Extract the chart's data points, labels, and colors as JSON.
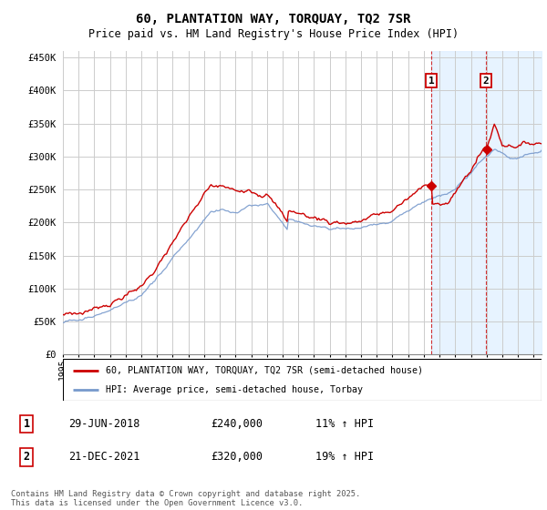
{
  "title": "60, PLANTATION WAY, TORQUAY, TQ2 7SR",
  "subtitle": "Price paid vs. HM Land Registry's House Price Index (HPI)",
  "ylabel_ticks": [
    "£0",
    "£50K",
    "£100K",
    "£150K",
    "£200K",
    "£250K",
    "£300K",
    "£350K",
    "£400K",
    "£450K"
  ],
  "ytick_values": [
    0,
    50000,
    100000,
    150000,
    200000,
    250000,
    300000,
    350000,
    400000,
    450000
  ],
  "ylim": [
    0,
    460000
  ],
  "xlim_start": 1995.0,
  "xlim_end": 2025.5,
  "transaction1_date": 2018.49,
  "transaction1_price": 240000,
  "transaction1_label": "1",
  "transaction1_pct": "11% ↑ HPI",
  "transaction1_date_str": "29-JUN-2018",
  "transaction2_date": 2021.97,
  "transaction2_price": 320000,
  "transaction2_label": "2",
  "transaction2_pct": "19% ↑ HPI",
  "transaction2_date_str": "21-DEC-2021",
  "legend_line1": "60, PLANTATION WAY, TORQUAY, TQ2 7SR (semi-detached house)",
  "legend_line2": "HPI: Average price, semi-detached house, Torbay",
  "footer": "Contains HM Land Registry data © Crown copyright and database right 2025.\nThis data is licensed under the Open Government Licence v3.0.",
  "line_color_red": "#cc0000",
  "line_color_blue": "#7799cc",
  "shading_color": "#ddeeff",
  "vline_color": "#cc0000",
  "background_color": "#ffffff",
  "grid_color": "#cccccc"
}
